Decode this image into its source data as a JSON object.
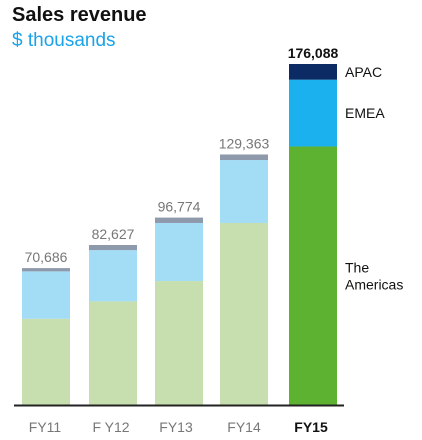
{
  "chart_data": {
    "type": "bar",
    "stacked": true,
    "title": "Sales revenue",
    "subtitle": "$ thousands",
    "categories": [
      "FY11",
      "F Y12",
      "FY13",
      "FY14",
      "FY15"
    ],
    "highlight_category": "FY15",
    "totals": [
      70686,
      82627,
      96774,
      129363,
      176088
    ],
    "total_labels": [
      "70,686",
      "82,627",
      "96,774",
      "129,363",
      "176,088"
    ],
    "series": [
      {
        "name": "The Americas",
        "values": [
          44500,
          53500,
          64000,
          94000,
          133500
        ]
      },
      {
        "name": "EMEA",
        "values": [
          24500,
          26500,
          30000,
          32500,
          34500
        ]
      },
      {
        "name": "APAC",
        "values": [
          1686,
          2627,
          2774,
          2863,
          8088
        ]
      }
    ],
    "colors": {
      "muted": [
        "#c7dfae",
        "#a3dcf5",
        "#8e99ab"
      ],
      "highlight": [
        "#5db232",
        "#1bb0ee",
        "#0c2b64"
      ],
      "label_muted": "#777777",
      "label_highlight": "#111111",
      "baseline": "#222222"
    },
    "ylim": [
      0,
      176088
    ],
    "grid": false,
    "legend": "direct labels right of last bar"
  }
}
